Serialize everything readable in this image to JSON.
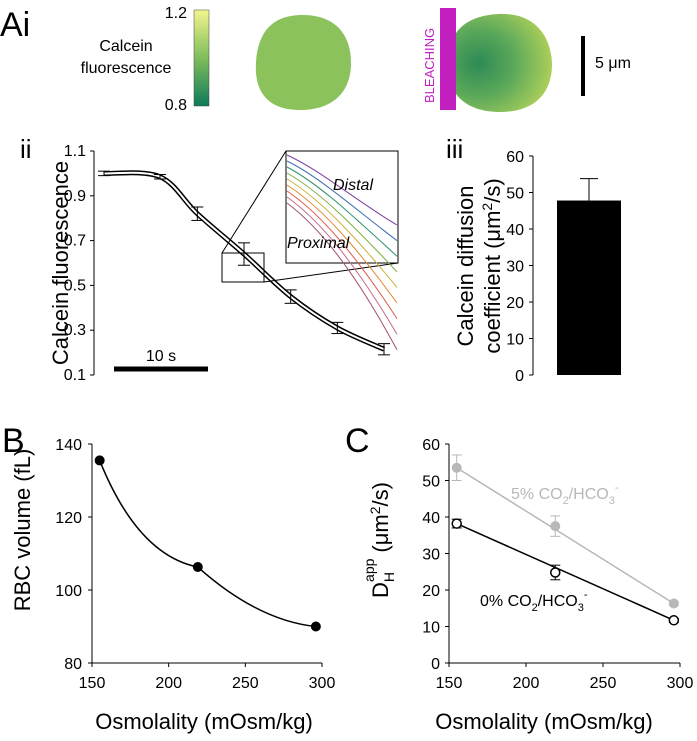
{
  "panel_labels": {
    "ai": "Ai",
    "aii": "ii",
    "aiii": "iii",
    "b": "B",
    "c": "C"
  },
  "colorbar": {
    "label_line1": "Calcein",
    "label_line2": "fluorescence",
    "max_label": "1.2",
    "min_label": "0.8",
    "color_high": "#f3f58e",
    "color_low": "#0f7a5a"
  },
  "images": {
    "bleaching_label": "BLEACHING",
    "scale_bar_label": "5 μm",
    "cell_color": "#8cc25c",
    "bleach_color": "#c21fbf"
  },
  "chart_data": [
    {
      "panel": "Aii",
      "type": "line",
      "ylabel": "Calcein fluorescence",
      "ylim": [
        0.1,
        1.1
      ],
      "yticks": [
        "0.1",
        "0.3",
        "0.5",
        "0.7",
        "0.9",
        "1.1"
      ],
      "time_scale_label": "10 s",
      "x_seconds": [
        0,
        6,
        10,
        15,
        20,
        25,
        30
      ],
      "series": [
        {
          "values": [
            1.0,
            0.985,
            0.82,
            0.64,
            0.45,
            0.31,
            0.215
          ],
          "errors": [
            0.01,
            0.01,
            0.03,
            0.05,
            0.03,
            0.025,
            0.025
          ]
        }
      ],
      "inset": {
        "distal_label": "Distal",
        "proximal_label": "Proximal"
      }
    },
    {
      "panel": "Aiii",
      "type": "bar",
      "ylabel_line1": "Calcein diffusion",
      "ylabel_line2_pre": "coefficient (μm",
      "ylabel_line2_sup": "2",
      "ylabel_line2_post": "/s)",
      "ylim": [
        0,
        60
      ],
      "yticks": [
        "0",
        "10",
        "20",
        "30",
        "40",
        "50",
        "60"
      ],
      "values": [
        47.8
      ],
      "errors": [
        6.0
      ],
      "bar_color": "#000000"
    },
    {
      "panel": "B",
      "type": "line",
      "xlabel": "Osmolality (mOsm/kg)",
      "ylabel": "RBC volume (fL)",
      "xlim": [
        150,
        300
      ],
      "ylim": [
        80,
        140
      ],
      "xticks": [
        "150",
        "200",
        "250",
        "300"
      ],
      "yticks": [
        "80",
        "100",
        "120",
        "140"
      ],
      "x": [
        155,
        219,
        296
      ],
      "values": [
        135.5,
        106.3,
        90
      ]
    },
    {
      "panel": "C",
      "type": "scatter",
      "xlabel": "Osmolality (mOsm/kg)",
      "ylabel_main": "D",
      "ylabel_sub": "H",
      "ylabel_sup": "app",
      "ylabel_unit_pre": "(μm",
      "ylabel_unit_sup": "2",
      "ylabel_unit_post": "/s)",
      "xlim": [
        150,
        300
      ],
      "ylim": [
        0,
        60
      ],
      "xticks": [
        "150",
        "200",
        "250",
        "300"
      ],
      "yticks": [
        "0",
        "10",
        "20",
        "30",
        "40",
        "50",
        "60"
      ],
      "x": [
        155,
        219,
        296
      ],
      "series": [
        {
          "label_pre": "5% CO",
          "label_sub1": "2",
          "label_mid": "/HCO",
          "label_sub2": "3",
          "label_sup": "-",
          "values": [
            53.5,
            37.5,
            16.3
          ],
          "errors": [
            3.5,
            2.8,
            0.5
          ],
          "color": "#b8b8b8"
        },
        {
          "label_pre": "0% CO",
          "label_sub1": "2",
          "label_mid": "/HCO",
          "label_sub2": "3",
          "label_sup": "-",
          "values": [
            38.2,
            24.8,
            11.7
          ],
          "errors": [
            1.2,
            2.0,
            0.5
          ],
          "color": "#000000"
        }
      ]
    }
  ]
}
